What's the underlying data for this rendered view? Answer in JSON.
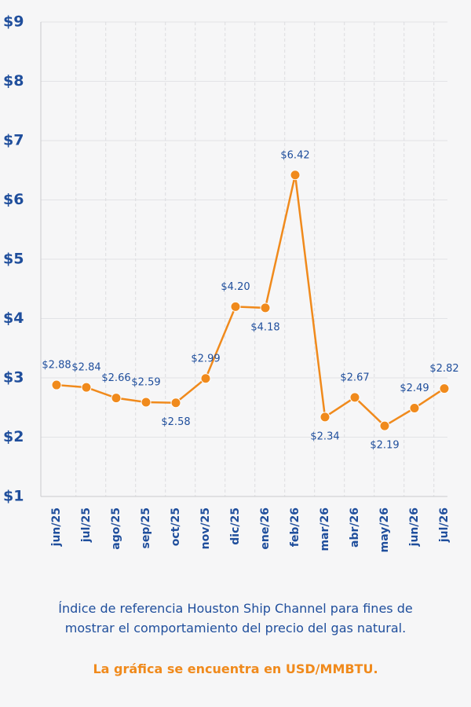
{
  "chart_data": {
    "type": "line",
    "categories": [
      "jun/25",
      "jul/25",
      "ago/25",
      "sep/25",
      "oct/25",
      "nov/25",
      "dic/25",
      "ene/26",
      "feb/26",
      "mar/26",
      "abr/26",
      "may/26",
      "jun/26",
      "jul/26"
    ],
    "series": [
      {
        "name": "Houston Ship Channel",
        "color": "#f08a1c",
        "values": [
          2.88,
          2.84,
          2.66,
          2.59,
          2.58,
          2.99,
          4.2,
          4.18,
          6.42,
          2.34,
          2.67,
          2.19,
          2.49,
          2.82
        ],
        "value_labels": [
          "$2.88",
          "$2.84",
          "$2.66",
          "$2.59",
          "$2.58",
          "$2.99",
          "$4.20",
          "$4.18",
          "$6.42",
          "$2.34",
          "$2.67",
          "$2.19",
          "$2.49",
          "$2.82"
        ]
      }
    ],
    "ylim": [
      1,
      9
    ],
    "yticks": [
      {
        "value": 1,
        "label": "$1"
      },
      {
        "value": 2,
        "label": "$2"
      },
      {
        "value": 3,
        "label": "$3"
      },
      {
        "value": 4,
        "label": "$4"
      },
      {
        "value": 5,
        "label": "$5"
      },
      {
        "value": 6,
        "label": "$6"
      },
      {
        "value": 7,
        "label": "$7"
      },
      {
        "value": 8,
        "label": "$8"
      },
      {
        "value": 9,
        "label": "$9"
      }
    ],
    "grid": true,
    "caption": "Índice de referencia Houston Ship Channel para fines de mostrar el comportamiento del precio del gas natural.",
    "note": "La gráfica se encuentra en USD/MMBTU."
  }
}
